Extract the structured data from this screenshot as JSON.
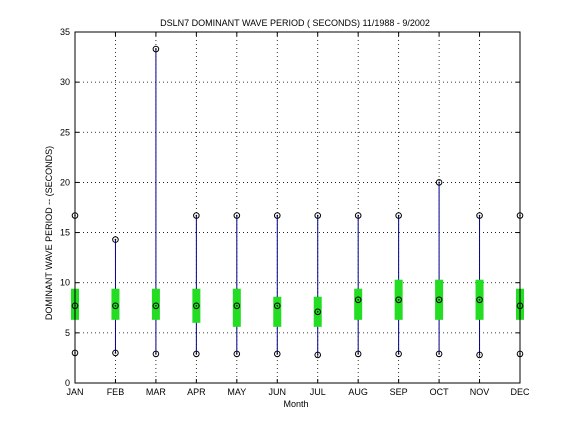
{
  "chart_data": {
    "type": "boxplot",
    "title": "DSLN7  DOMINANT WAVE PERIOD ( SECONDS) 11/1988 - 9/2002",
    "xlabel": "Month",
    "ylabel": "DOMINANT WAVE PERIOD --  (SECONDS)",
    "ylim": [
      0,
      35
    ],
    "yticks": [
      0,
      5,
      10,
      15,
      20,
      25,
      30,
      35
    ],
    "grid": true,
    "categories": [
      "JAN",
      "FEB",
      "MAR",
      "APR",
      "MAY",
      "JUN",
      "JUL",
      "AUG",
      "SEP",
      "OCT",
      "NOV",
      "DEC"
    ],
    "min": [
      3.0,
      3.0,
      2.9,
      2.9,
      2.9,
      2.9,
      2.8,
      2.9,
      2.9,
      2.9,
      2.8,
      2.9
    ],
    "q1": [
      6.3,
      6.3,
      6.3,
      6.0,
      5.6,
      5.6,
      5.6,
      6.3,
      6.3,
      6.3,
      6.3,
      6.3
    ],
    "median": [
      7.7,
      7.7,
      7.7,
      7.7,
      7.7,
      7.7,
      7.1,
      8.3,
      8.3,
      8.3,
      8.3,
      7.7
    ],
    "q3": [
      9.4,
      9.4,
      9.4,
      9.4,
      9.4,
      8.6,
      8.6,
      9.4,
      10.3,
      10.3,
      10.3,
      9.4
    ],
    "max": [
      16.7,
      14.3,
      33.3,
      16.7,
      16.7,
      16.7,
      16.7,
      16.7,
      16.7,
      20.0,
      16.7,
      16.7
    ],
    "colors": {
      "whisker": "#00008b",
      "box": "#22dd22",
      "marker": "#000000",
      "grid": "#000000"
    }
  }
}
